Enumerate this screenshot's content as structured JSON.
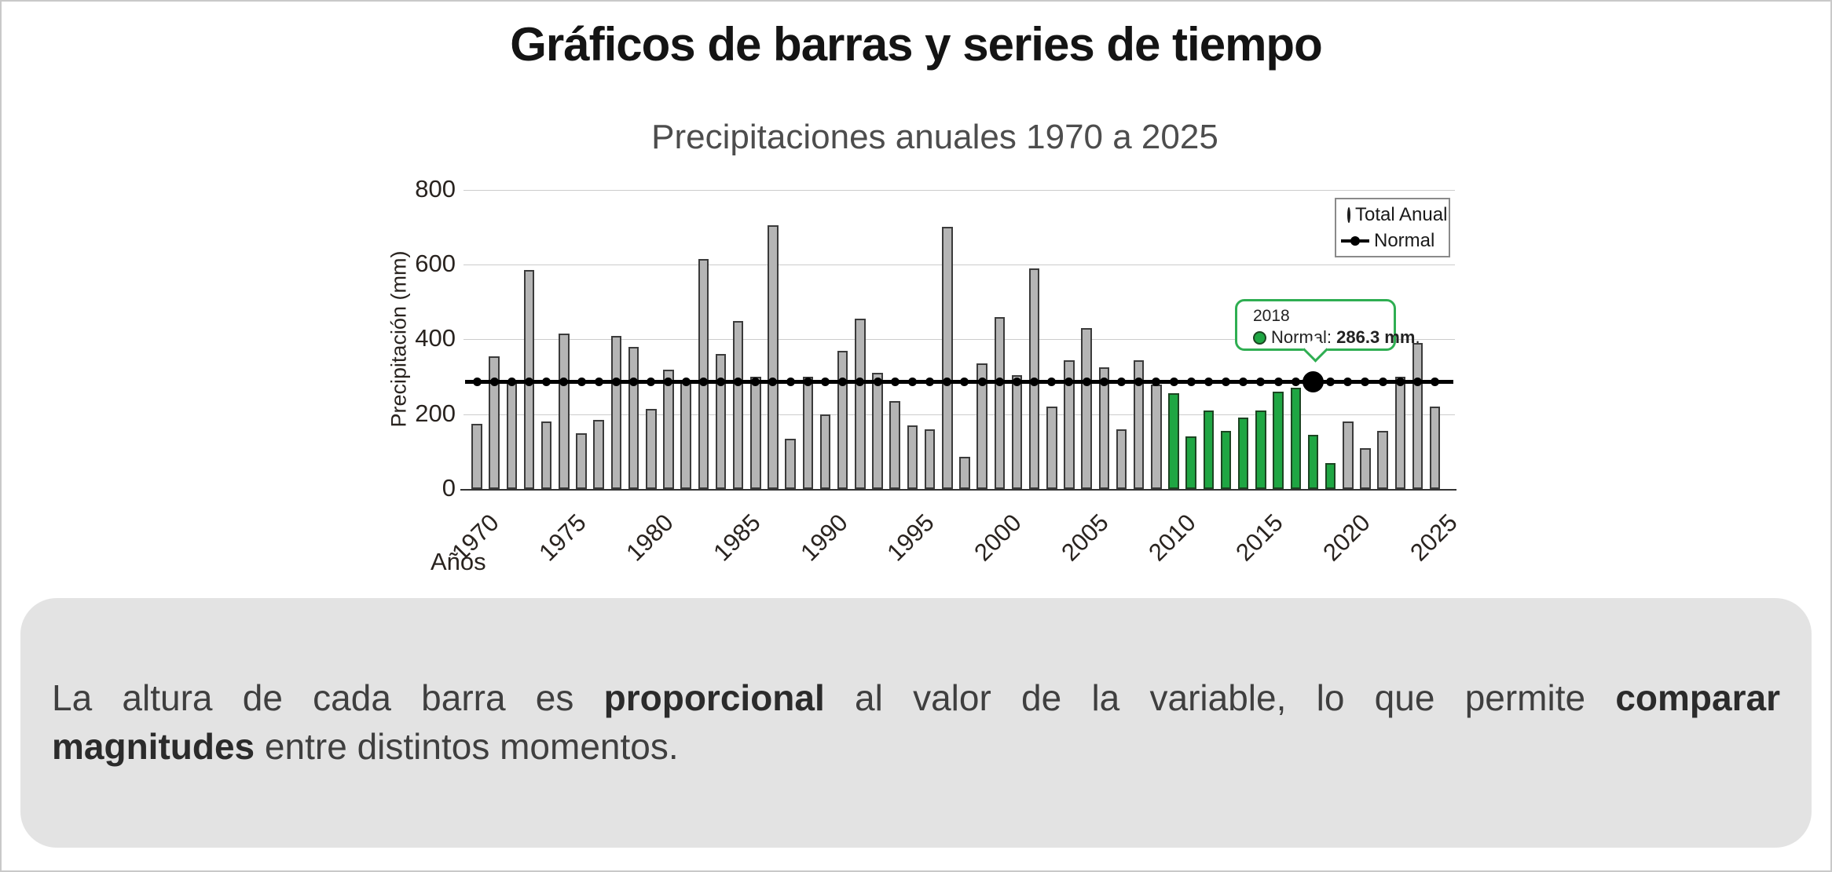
{
  "page": {
    "main_title": "Gráficos de barras y series de tiempo"
  },
  "chart_data": {
    "type": "bar",
    "title": "Precipitaciones anuales 1970 a 2025",
    "xlabel": "Años",
    "ylabel": "Precipitación (mm)",
    "ylim": [
      0,
      800
    ],
    "yticks": [
      0,
      200,
      400,
      600,
      800
    ],
    "xticks": [
      1970,
      1975,
      1980,
      1985,
      1990,
      1995,
      2000,
      2005,
      2010,
      2015,
      2020,
      2025
    ],
    "grid": true,
    "legend_position": "top-right",
    "categories": [
      1970,
      1971,
      1972,
      1973,
      1974,
      1975,
      1976,
      1977,
      1978,
      1979,
      1980,
      1981,
      1982,
      1983,
      1984,
      1985,
      1986,
      1987,
      1988,
      1989,
      1990,
      1991,
      1992,
      1993,
      1994,
      1995,
      1996,
      1997,
      1998,
      1999,
      2000,
      2001,
      2002,
      2003,
      2004,
      2005,
      2006,
      2007,
      2008,
      2009,
      2010,
      2011,
      2012,
      2013,
      2014,
      2015,
      2016,
      2017,
      2018,
      2019,
      2020,
      2021,
      2022,
      2023,
      2024,
      2025
    ],
    "series": [
      {
        "name": "Total Anual",
        "type": "bar",
        "values": [
          175,
          355,
          290,
          585,
          180,
          415,
          150,
          185,
          410,
          380,
          215,
          320,
          290,
          615,
          360,
          450,
          300,
          705,
          135,
          300,
          200,
          370,
          455,
          310,
          235,
          170,
          160,
          700,
          85,
          335,
          460,
          305,
          590,
          220,
          345,
          430,
          325,
          160,
          345,
          280,
          255,
          140,
          210,
          155,
          190,
          210,
          260,
          270,
          145,
          70,
          180,
          110,
          155,
          300,
          390,
          220
        ]
      },
      {
        "name": "Normal",
        "type": "line",
        "constant_value": 286.3
      }
    ],
    "highlight_years": [
      2010,
      2011,
      2012,
      2013,
      2014,
      2015,
      2016,
      2017,
      2018,
      2019
    ],
    "colors": {
      "bar": "#b5b5b5",
      "bar_border": "#3b3b3b",
      "highlight": "#1fa643",
      "highlight_border": "#1c4522",
      "normal_line": "#000000",
      "grid": "#cccccc",
      "tooltip_border": "#2fae52",
      "panel_background": "#e3e3e3"
    }
  },
  "legend": {
    "items": [
      {
        "label": "Total Anual",
        "swatch": "green-circle"
      },
      {
        "label": "Normal",
        "swatch": "black-line-dot"
      }
    ]
  },
  "tooltip": {
    "year": "2018",
    "label": "Normal:",
    "value": "286.3 mm",
    "suffix": "."
  },
  "caption": {
    "lines": [
      [
        {
          "text": "La altura de cada barra es "
        },
        {
          "text": "proporcional",
          "bold": true
        },
        {
          "text": " al valor de la variable, lo que permite "
        },
        {
          "text": "comparar",
          "bold": true
        }
      ],
      [
        {
          "text": "magnitudes",
          "bold": true
        },
        {
          "text": " entre distintos momentos."
        }
      ]
    ]
  }
}
